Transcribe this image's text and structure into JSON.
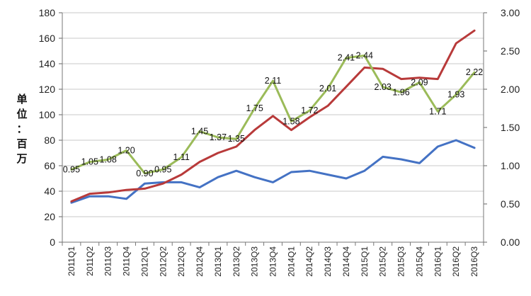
{
  "chart_data": {
    "type": "line",
    "title": "",
    "xlabel": "",
    "ylabel": "单位：百万",
    "ylabel_chars": [
      "单",
      "位",
      "：",
      "百",
      "万"
    ],
    "ylim_left": [
      0,
      180
    ],
    "yticks_left": [
      "0",
      "20",
      "40",
      "60",
      "80",
      "100",
      "120",
      "140",
      "160",
      "180"
    ],
    "ylim_right": [
      0,
      3
    ],
    "yticks_right": [
      "0.00",
      "0.50",
      "1.00",
      "1.50",
      "2.00",
      "2.50",
      "3.00"
    ],
    "grid": true,
    "categories": [
      "2011Q1",
      "2011Q2",
      "2011Q3",
      "2011Q4",
      "2012Q1",
      "2012Q2",
      "2012Q3",
      "2012Q4",
      "2013Q1",
      "2013Q2",
      "2013Q3",
      "2013Q4",
      "2014Q1",
      "2014Q2",
      "2014Q3",
      "2014Q4",
      "2015Q1",
      "2015Q2",
      "2015Q3",
      "2015Q4",
      "2016Q1",
      "2016Q2",
      "2016Q3"
    ],
    "series": [
      {
        "axis": "left",
        "color": "#4472C4",
        "values": [
          31,
          36,
          36,
          34,
          46,
          47,
          47,
          43,
          51,
          56,
          51,
          47,
          55,
          56,
          53,
          50,
          56,
          67,
          65,
          62,
          75,
          80,
          74
        ]
      },
      {
        "axis": "left",
        "color": "#B83A3A",
        "values": [
          32,
          38,
          39,
          41,
          42,
          46,
          53,
          63,
          70,
          75,
          88,
          99,
          88,
          98,
          107,
          122,
          137,
          136,
          128,
          129,
          128,
          156,
          166
        ]
      },
      {
        "axis": "right",
        "color": "#9BBB59",
        "values": [
          0.95,
          1.05,
          1.08,
          1.2,
          0.9,
          0.95,
          1.11,
          1.45,
          1.37,
          1.35,
          1.75,
          2.11,
          1.58,
          1.72,
          2.01,
          2.41,
          2.44,
          2.03,
          1.96,
          2.09,
          1.71,
          1.93,
          2.22
        ],
        "labels": [
          "0.95",
          "1.05",
          "1.08",
          "1.20",
          "0.90",
          "0.95",
          "1.11",
          "1.45",
          "1.37",
          "1.35",
          "1.75",
          "2.11",
          "1.58",
          "1.72",
          "2.01",
          "2.41",
          "2.44",
          "2.03",
          "1.96",
          "2.09",
          "1.71",
          "1.93",
          "2.22"
        ]
      }
    ]
  }
}
